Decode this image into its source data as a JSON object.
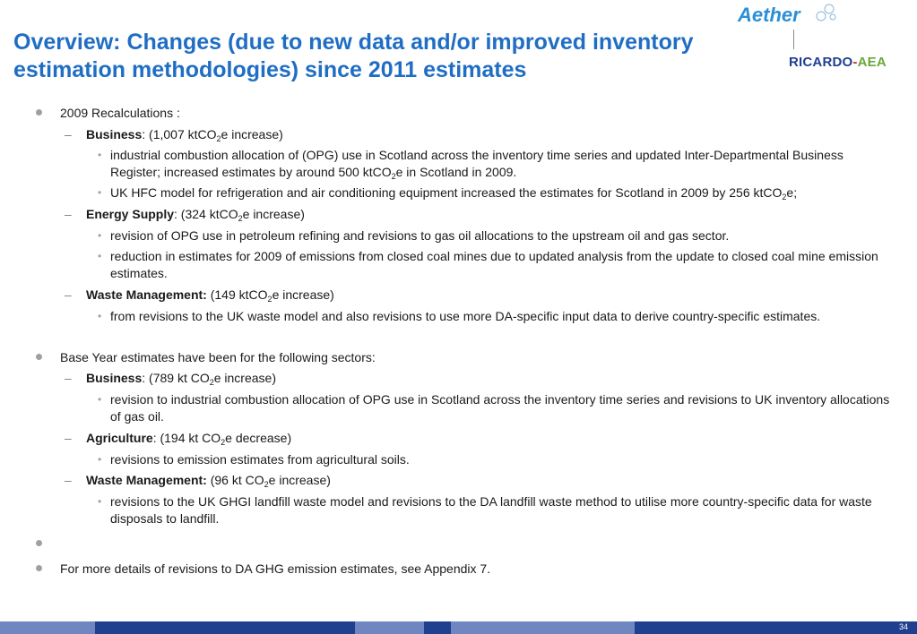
{
  "title": "Overview: Changes (due to new data and/or improved inventory estimation methodologies) since 2011 estimates",
  "logos": {
    "aether": "Aether",
    "ricardo": "RICARDO",
    "dash": "-",
    "aea": "AEA"
  },
  "recalc": {
    "heading": "2009 Recalculations :",
    "business": {
      "label": "Business",
      "amount": ": (1,007 ktCO",
      "sub": "2",
      "after": "e increase)"
    },
    "business_b1": "industrial combustion allocation of (OPG) use in Scotland across the inventory time series and updated Inter-Departmental Business Register; increased estimates by around 500 ktCO",
    "business_b1_sub": "2",
    "business_b1_after": "e in Scotland in 2009.",
    "business_b2": "UK HFC model for refrigeration and air conditioning equipment increased the estimates for Scotland in 2009 by 256 ktCO",
    "business_b2_sub": "2",
    "business_b2_after": "e;",
    "energy": {
      "label": "Energy Supply",
      "amount": ": (324 ktCO",
      "sub": "2",
      "after": "e increase)"
    },
    "energy_b1": "revision of OPG use in petroleum refining and revisions to gas oil allocations to the upstream oil and gas sector.",
    "energy_b2": "reduction in estimates for 2009 of emissions from closed coal mines due to updated analysis from the update to closed coal mine emission estimates.",
    "waste": {
      "label": "Waste Management:",
      "amount": " (149 ktCO",
      "sub": "2",
      "after": "e increase)"
    },
    "waste_b1": "from revisions to the UK waste model and also revisions to use more DA-specific input data to derive country-specific estimates."
  },
  "base": {
    "heading": "Base Year estimates have been for the following sectors:",
    "business": {
      "label": "Business",
      "amount": ": (789 kt CO",
      "sub": "2",
      "after": "e increase)"
    },
    "business_b1": "revision to industrial combustion allocation of OPG use in Scotland across the inventory time series and revisions to UK inventory allocations of gas oil.",
    "agri": {
      "label": "Agriculture",
      "amount": ": (194 kt CO",
      "sub": "2",
      "after": "e decrease)"
    },
    "agri_b1": "revisions to emission estimates from agricultural soils.",
    "waste": {
      "label": "Waste Management:",
      "amount": " (96 kt CO",
      "sub": "2",
      "after": "e increase)"
    },
    "waste_b1": "revisions to the UK GHGI landfill waste model and revisions to the DA landfill waste method to utilise more country-specific data for waste disposals to landfill."
  },
  "more_details": "For more details of revisions to DA GHG emission estimates, see Appendix 7.",
  "page_number": "34",
  "colors": {
    "title": "#1f6ec4",
    "footer_dark": "#1f3f8f",
    "footer_light": "#6f86c0"
  }
}
